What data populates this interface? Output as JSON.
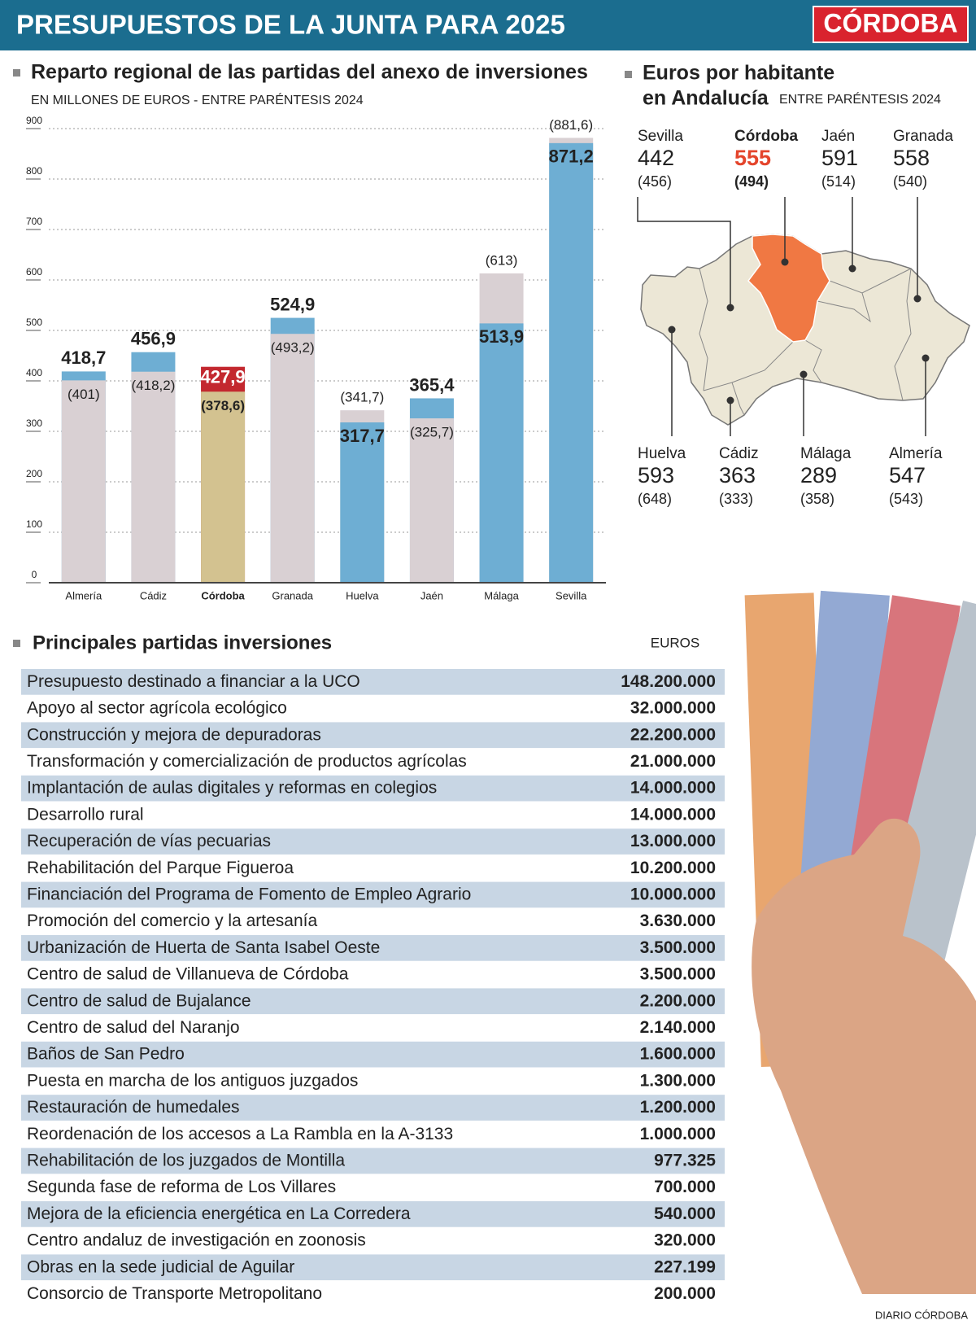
{
  "header": {
    "title": "PRESUPUESTOS DE LA JUNTA PARA 2025",
    "logo": "CÓRDOBA"
  },
  "chart_data": {
    "type": "bar",
    "title": "Reparto regional de las partidas del anexo de inversiones",
    "subtitle": "EN MILLONES DE EUROS - ENTRE PARÉNTESIS 2024",
    "categories": [
      "Almería",
      "Cádiz",
      "Córdoba",
      "Granada",
      "Huelva",
      "Jaén",
      "Málaga",
      "Sevilla"
    ],
    "series": [
      {
        "values": [
          418.7,
          456.9,
          427.9,
          524.9,
          317.7,
          365.4,
          513.9,
          871.2
        ],
        "value_labels": [
          "418,7",
          "456,9",
          "427,9",
          "524,9",
          "317,7",
          "365,4",
          "513,9",
          "871,2"
        ],
        "colors": [
          "#6eaed3",
          "#6eaed3",
          "#c3282f",
          "#6eaed3",
          "#6eaed3",
          "#6eaed3",
          "#6eaed3",
          "#6eaed3"
        ]
      },
      {
        "values": [
          401,
          418.2,
          378.6,
          493.2,
          341.7,
          325.7,
          613,
          881.6
        ],
        "value_labels": [
          "(401)",
          "(418,2)",
          "(378,6)",
          "(493,2)",
          "(341,7)",
          "(325,7)",
          "(613)",
          "(881,6)"
        ],
        "colors": [
          "#d9d0d3",
          "#d9d0d3",
          "#d3c290",
          "#d9d0d3",
          "#d9d0d3",
          "#d9d0d3",
          "#d9d0d3",
          "#d9d0d3"
        ]
      }
    ],
    "ylim": [
      0,
      900
    ],
    "yticks": [
      0,
      100,
      200,
      300,
      400,
      500,
      600,
      700,
      800,
      900
    ],
    "grid": true
  },
  "per_capita": {
    "title": [
      "Euros por habitante",
      "en Andalucía"
    ],
    "subtitle": "ENTRE PARÉNTESIS 2024",
    "provinces": [
      {
        "name": "Sevilla",
        "value": "442",
        "previous": "(456)"
      },
      {
        "name": "Córdoba",
        "value": "555",
        "previous": "(494)",
        "highlight": true
      },
      {
        "name": "Jaén",
        "value": "591",
        "previous": "(514)"
      },
      {
        "name": "Granada",
        "value": "558",
        "previous": "(540)"
      },
      {
        "name": "Huelva",
        "value": "593",
        "previous": "(648)"
      },
      {
        "name": "Cádiz",
        "value": "363",
        "previous": "(333)"
      },
      {
        "name": "Málaga",
        "value": "289",
        "previous": "(358)"
      },
      {
        "name": "Almería",
        "value": "547",
        "previous": "(543)"
      }
    ]
  },
  "table": {
    "title": "Principales partidas inversiones",
    "unit": "EUROS",
    "rows": [
      [
        "Presupuesto destinado a financiar a la UCO",
        "148.200.000"
      ],
      [
        "Apoyo al sector agrícola ecológico",
        "32.000.000"
      ],
      [
        "Construcción y mejora de depuradoras",
        "22.200.000"
      ],
      [
        "Transformación y comercialización de productos agrícolas",
        "21.000.000"
      ],
      [
        "Implantación de aulas digitales y reformas en colegios",
        "14.000.000"
      ],
      [
        "Desarrollo rural",
        "14.000.000"
      ],
      [
        "Recuperación de vías pecuarias",
        "13.000.000"
      ],
      [
        "Rehabilitación del Parque Figueroa",
        "10.200.000"
      ],
      [
        "Financiación del Programa de Fomento de Empleo Agrario",
        "10.000.000"
      ],
      [
        "Promoción del comercio y la artesanía",
        "3.630.000"
      ],
      [
        "Urbanización de Huerta de Santa Isabel Oeste",
        "3.500.000"
      ],
      [
        "Centro de salud de Villanueva de Córdoba",
        "3.500.000"
      ],
      [
        "Centro de salud de Bujalance",
        "2.200.000"
      ],
      [
        "Centro de salud del Naranjo",
        "2.140.000"
      ],
      [
        "Baños de San Pedro",
        "1.600.000"
      ],
      [
        "Puesta en marcha de los antiguos juzgados",
        "1.300.000"
      ],
      [
        "Restauración de humedales",
        "1.200.000"
      ],
      [
        "Reordenación de los accesos a La Rambla en la A-3133",
        "1.000.000"
      ],
      [
        "Rehabilitación de los juzgados de Montilla",
        "977.325"
      ],
      [
        "Segunda fase de reforma de Los Villares",
        "700.000"
      ],
      [
        "Mejora de la eficiencia energética en La Corredera",
        "540.000"
      ],
      [
        "Centro andaluz de investigación en zoonosis",
        "320.000"
      ],
      [
        "Obras en la sede judicial de Aguilar",
        "227.199"
      ],
      [
        "Consorcio de Transporte Metropolitano",
        "200.000"
      ]
    ]
  },
  "footer": "DIARIO CÓRDOBA"
}
